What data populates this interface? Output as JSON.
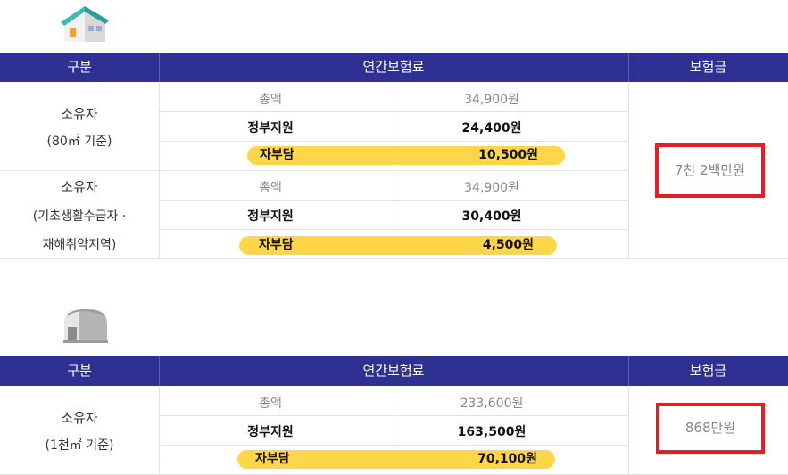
{
  "table1": {
    "header": {
      "category": "구분",
      "premium": "연간보험료",
      "coverage": "보험금"
    },
    "groups": [
      {
        "owner_line1": "소유자",
        "owner_line2": "(80㎡ 기준)",
        "owner_line3": "",
        "total_label": "총액",
        "total_value": "34,900원",
        "gov_label": "정부지원",
        "gov_value": "24,400원",
        "self_label": "자부담",
        "self_value": "10,500원"
      },
      {
        "owner_line1": "소유자",
        "owner_line2": "(기초생활수급자 ·",
        "owner_line3": "재해취약지역)",
        "total_label": "총액",
        "total_value": "34,900원",
        "gov_label": "정부지원",
        "gov_value": "30,400원",
        "self_label": "자부담",
        "self_value": "4,500원"
      }
    ],
    "coverage_value": "7천 2백만원"
  },
  "table2": {
    "header": {
      "category": "구분",
      "premium": "연간보험료",
      "coverage": "보험금"
    },
    "group": {
      "owner_line1": "소유자",
      "owner_line2": "(1천㎡ 기준)",
      "total_label": "총액",
      "total_value": "233,600원",
      "gov_label": "정부지원",
      "gov_value": "163,500원",
      "self_label": "자부담",
      "self_value": "70,100원"
    },
    "coverage_value": "868만원"
  },
  "colors": {
    "header_bg": "#2e3192",
    "highlight_pill": "#ffd54a",
    "highlight_box": "#e41e26"
  },
  "icons": {
    "top": "house-icon",
    "bottom": "warehouse-icon"
  }
}
